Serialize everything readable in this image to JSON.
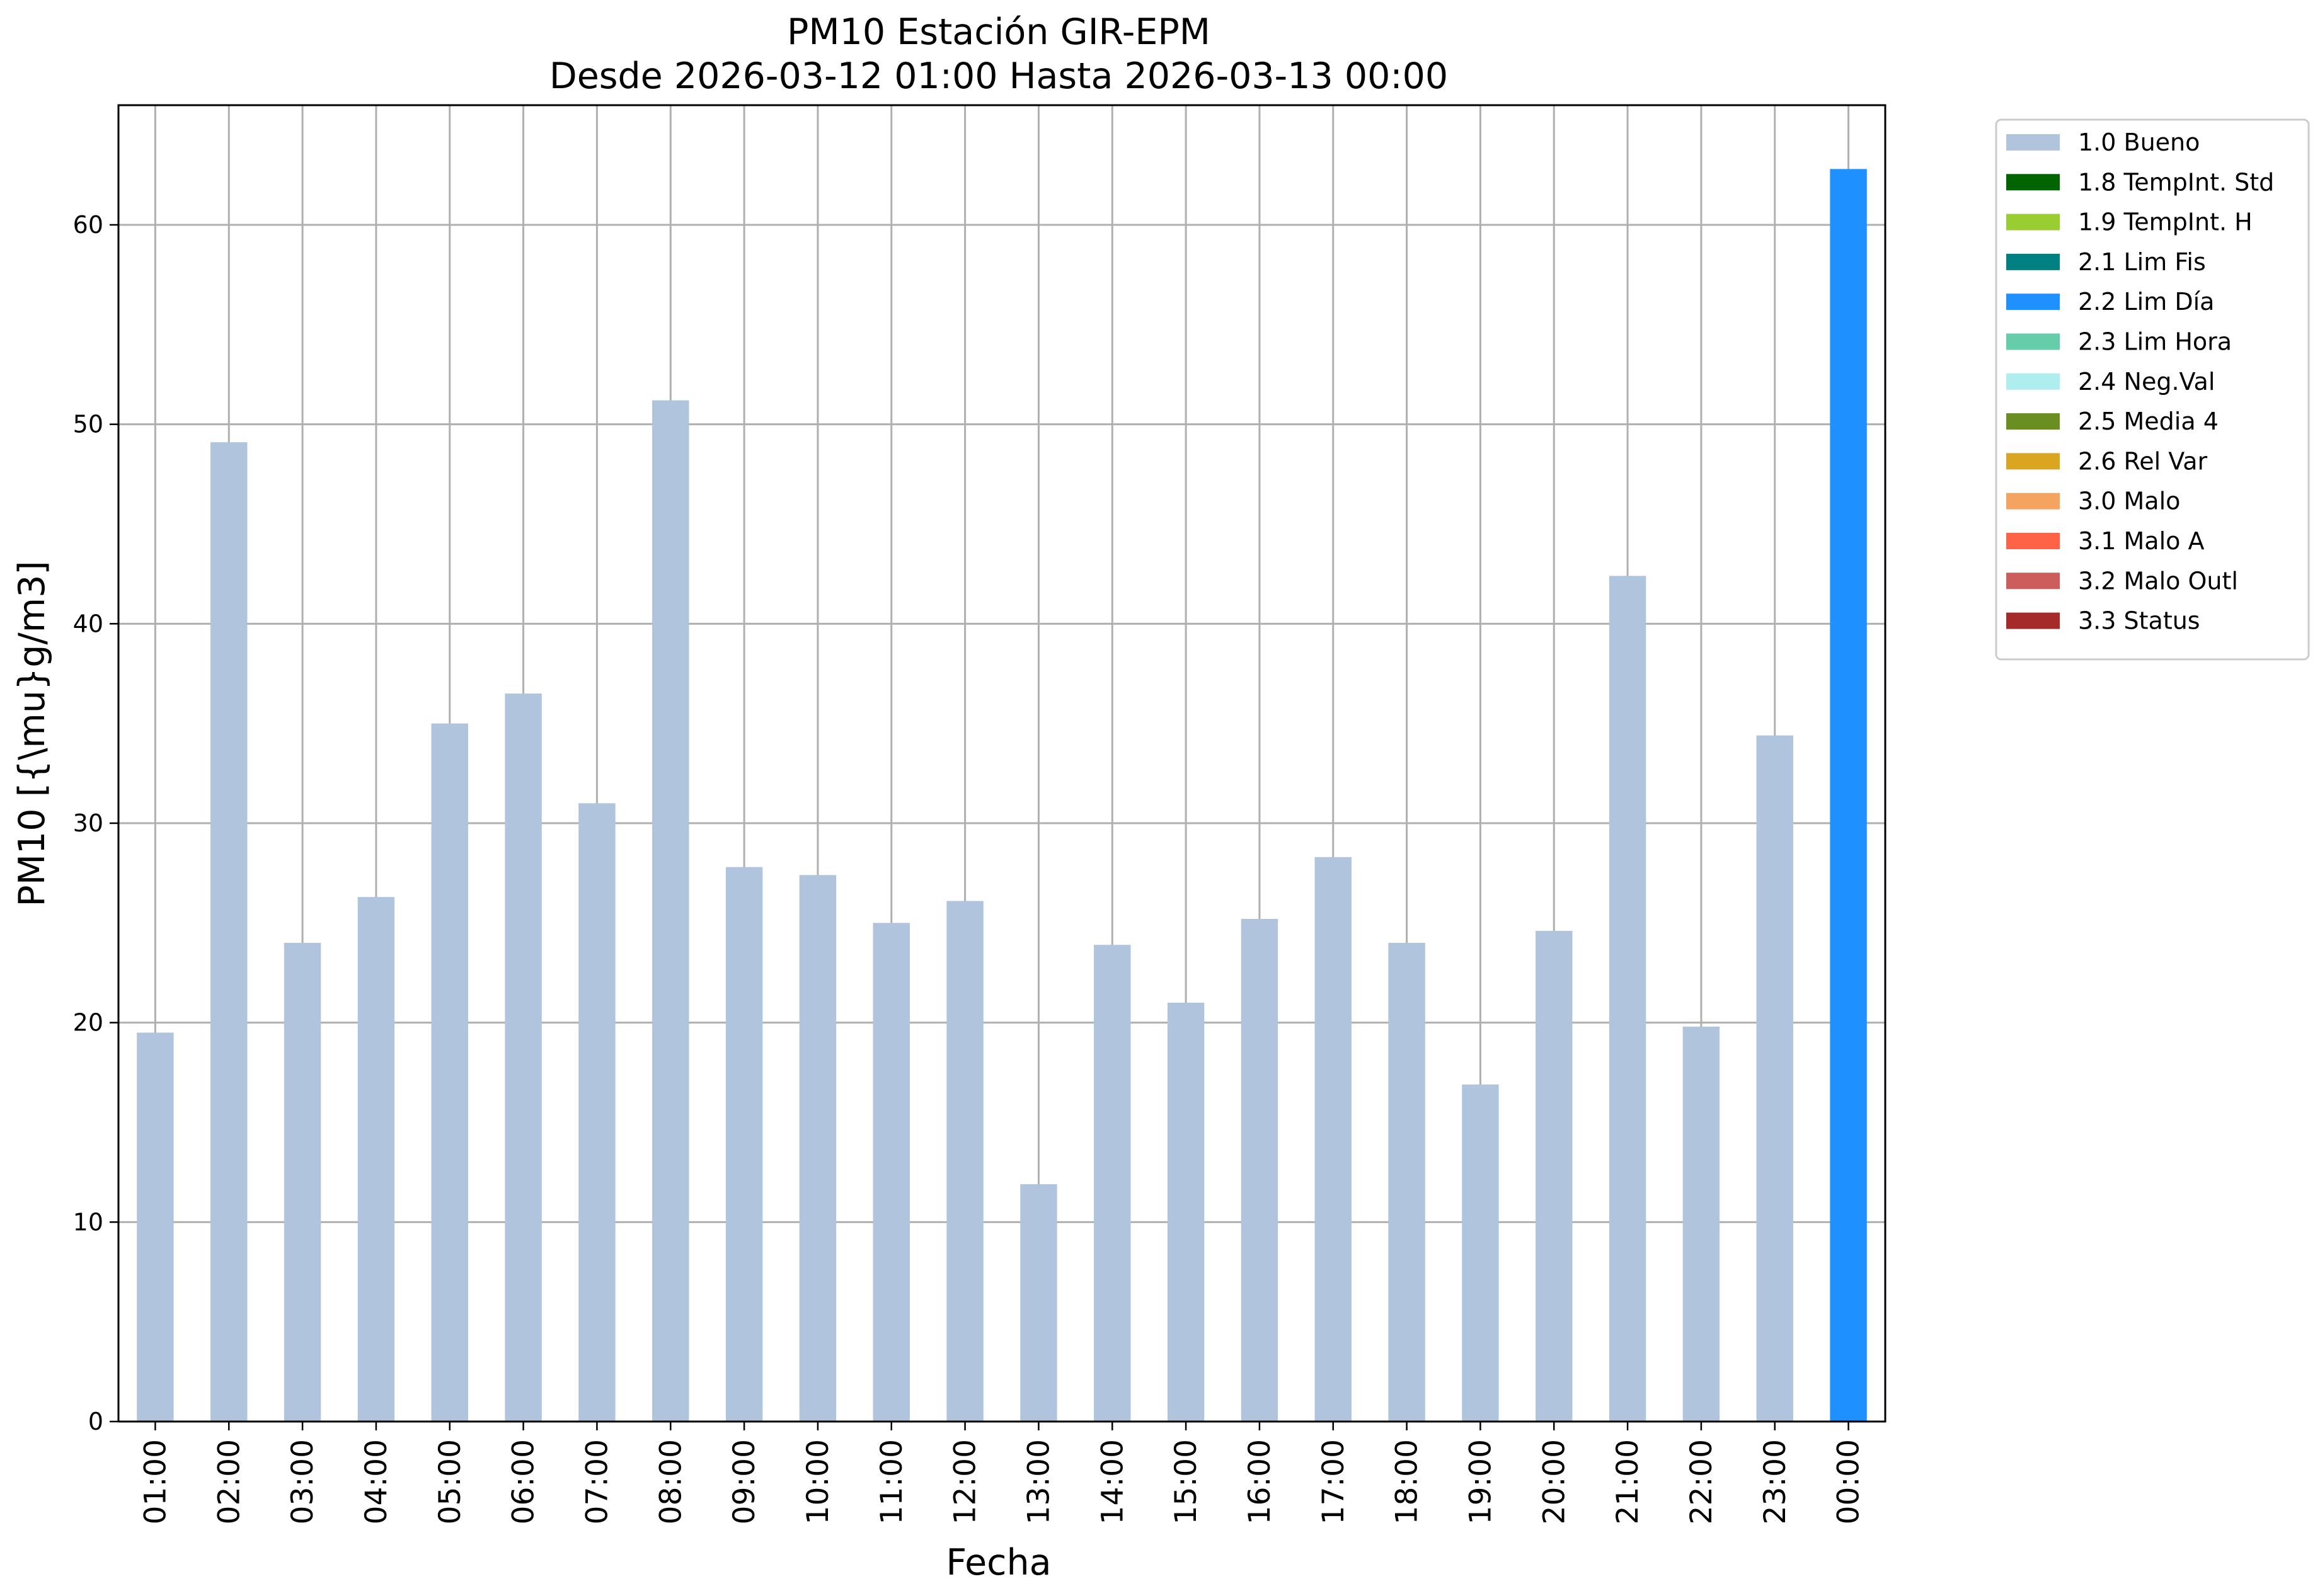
{
  "chart_data": {
    "type": "bar",
    "title": "PM10 Estación GIR-EPM",
    "subtitle": "Desde 2026-03-12 01:00 Hasta 2026-03-13 00:00",
    "xlabel": "Fecha",
    "ylabel": "PM10 [{\\mu}g/m3]",
    "ylim": [
      0,
      66
    ],
    "yticks": [
      0,
      10,
      20,
      30,
      40,
      50,
      60
    ],
    "grid": true,
    "legend_position": "outside-top-right",
    "categories": [
      "01:00",
      "02:00",
      "03:00",
      "04:00",
      "05:00",
      "06:00",
      "07:00",
      "08:00",
      "09:00",
      "10:00",
      "11:00",
      "12:00",
      "13:00",
      "14:00",
      "15:00",
      "16:00",
      "17:00",
      "18:00",
      "19:00",
      "20:00",
      "21:00",
      "22:00",
      "23:00",
      "00:00"
    ],
    "values": [
      19.5,
      49.1,
      24.0,
      26.3,
      35.0,
      36.5,
      31.0,
      51.2,
      27.8,
      27.4,
      25.0,
      26.1,
      11.9,
      23.9,
      21.0,
      25.2,
      28.3,
      24.0,
      16.9,
      24.6,
      42.4,
      19.8,
      34.4,
      62.8
    ],
    "flags": [
      "1.0 Bueno",
      "1.0 Bueno",
      "1.0 Bueno",
      "1.0 Bueno",
      "1.0 Bueno",
      "1.0 Bueno",
      "1.0 Bueno",
      "1.0 Bueno",
      "1.0 Bueno",
      "1.0 Bueno",
      "1.0 Bueno",
      "1.0 Bueno",
      "1.0 Bueno",
      "1.0 Bueno",
      "1.0 Bueno",
      "1.0 Bueno",
      "1.0 Bueno",
      "1.0 Bueno",
      "1.0 Bueno",
      "1.0 Bueno",
      "1.0 Bueno",
      "1.0 Bueno",
      "1.0 Bueno",
      "2.2 Lim Día"
    ],
    "legend": [
      {
        "label": "1.0 Bueno",
        "color": "#b0c4de"
      },
      {
        "label": "1.8 TempInt. Std",
        "color": "#006400"
      },
      {
        "label": "1.9 TempInt. H",
        "color": "#9acd32"
      },
      {
        "label": "2.1 Lim Fis",
        "color": "#008080"
      },
      {
        "label": "2.2 Lim Día",
        "color": "#1e90ff"
      },
      {
        "label": "2.3 Lim Hora",
        "color": "#66cdaa"
      },
      {
        "label": "2.4 Neg.Val",
        "color": "#afeeee"
      },
      {
        "label": "2.5 Media 4",
        "color": "#6b8e23"
      },
      {
        "label": "2.6 Rel Var",
        "color": "#daa520"
      },
      {
        "label": "3.0 Malo",
        "color": "#f4a460"
      },
      {
        "label": "3.1 Malo A",
        "color": "#ff6347"
      },
      {
        "label": "3.2 Malo Outl",
        "color": "#cd5c5c"
      },
      {
        "label": "3.3 Status",
        "color": "#a52a2a"
      }
    ]
  }
}
